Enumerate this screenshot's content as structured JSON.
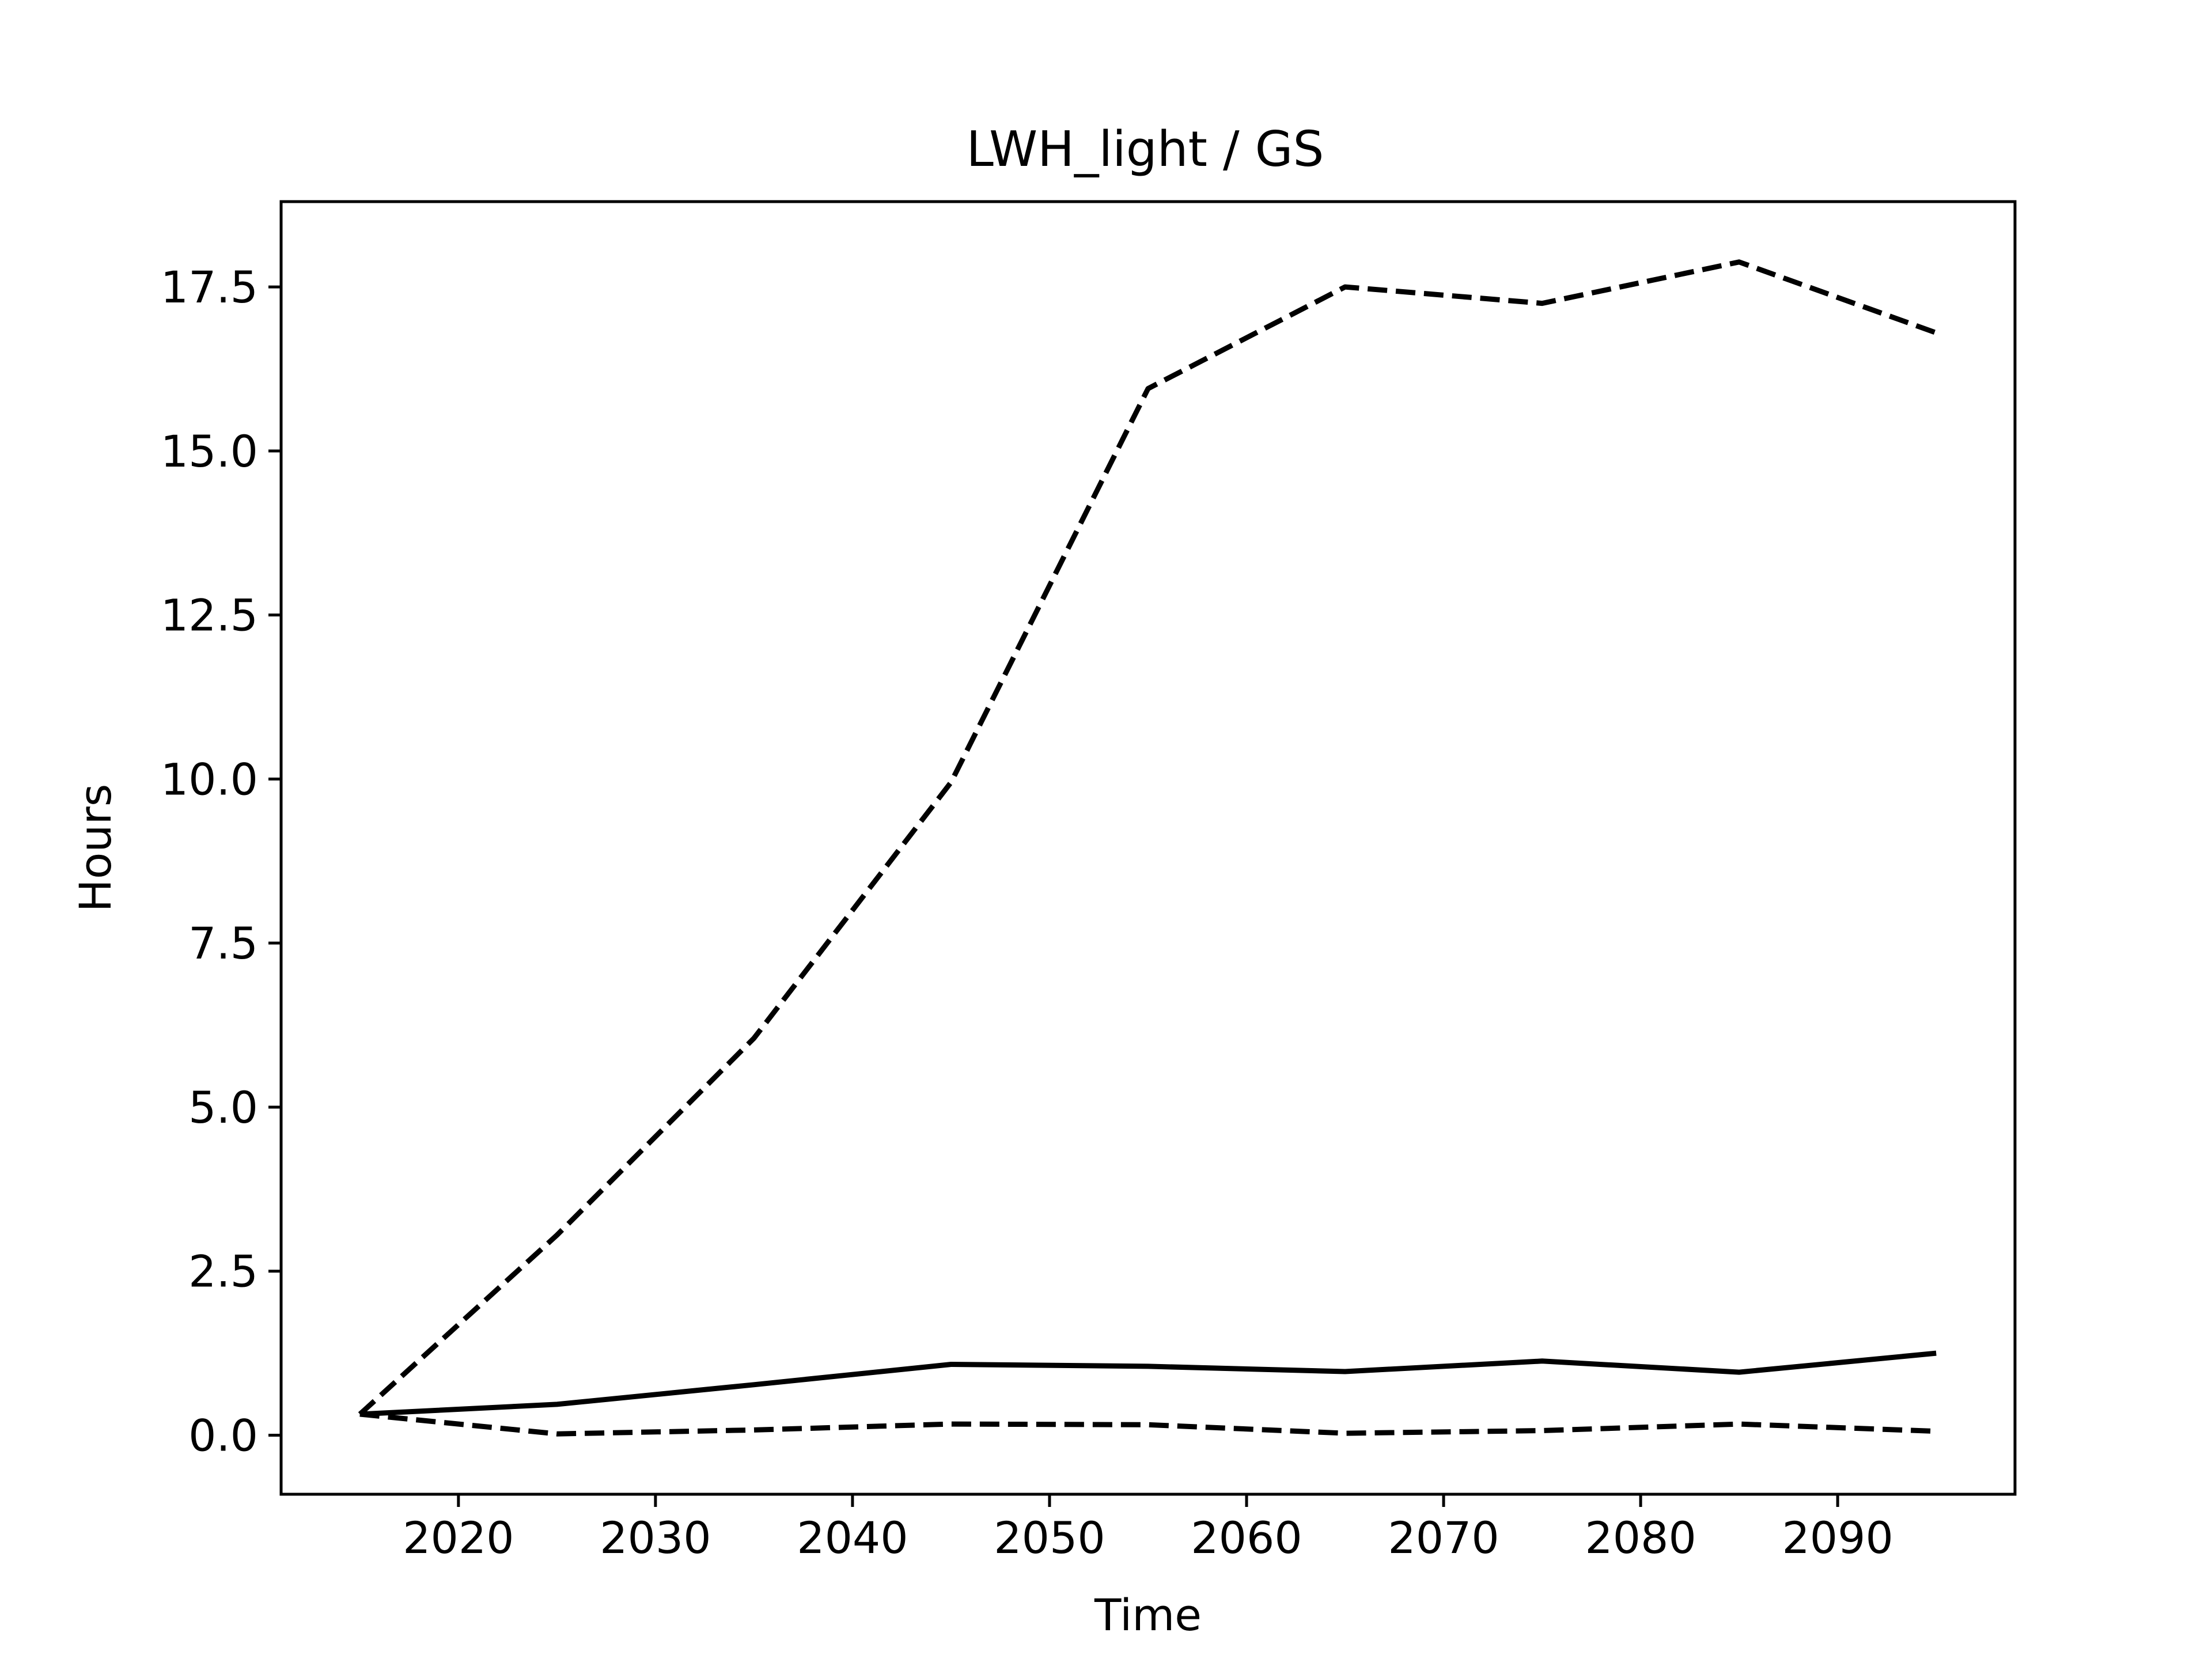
{
  "chart_data": {
    "type": "line",
    "title": "LWH_light / GS",
    "xlabel": "Time",
    "ylabel": "Hours",
    "xlim": [
      2011,
      2099
    ],
    "ylim": [
      -0.9,
      18.8
    ],
    "x_ticks": [
      2020,
      2030,
      2040,
      2050,
      2060,
      2070,
      2080,
      2090
    ],
    "x_tick_labels": [
      "2020",
      "2030",
      "2040",
      "2050",
      "2060",
      "2070",
      "2080",
      "2090"
    ],
    "y_ticks": [
      0,
      2.5,
      5,
      7.5,
      10,
      12.5,
      15,
      17.5
    ],
    "y_tick_labels": [
      "0.0",
      "2.5",
      "5.0",
      "7.5",
      "10.0",
      "12.5",
      "15.0",
      "17.5"
    ],
    "grid": false,
    "legend": "none",
    "x": [
      2015,
      2025,
      2035,
      2045,
      2055,
      2065,
      2075,
      2085,
      2095
    ],
    "series": [
      {
        "style": "dashed",
        "color": "#000000",
        "values": [
          0.32,
          3.05,
          6.05,
          9.95,
          15.95,
          17.5,
          17.25,
          17.88,
          16.8
        ]
      },
      {
        "style": "solid",
        "color": "#000000",
        "values": [
          0.32,
          0.47,
          0.77,
          1.08,
          1.05,
          0.97,
          1.13,
          0.96,
          1.25
        ]
      },
      {
        "style": "dashed",
        "color": "#000000",
        "values": [
          0.32,
          0.02,
          0.08,
          0.17,
          0.16,
          0.03,
          0.07,
          0.17,
          0.06
        ]
      }
    ]
  }
}
